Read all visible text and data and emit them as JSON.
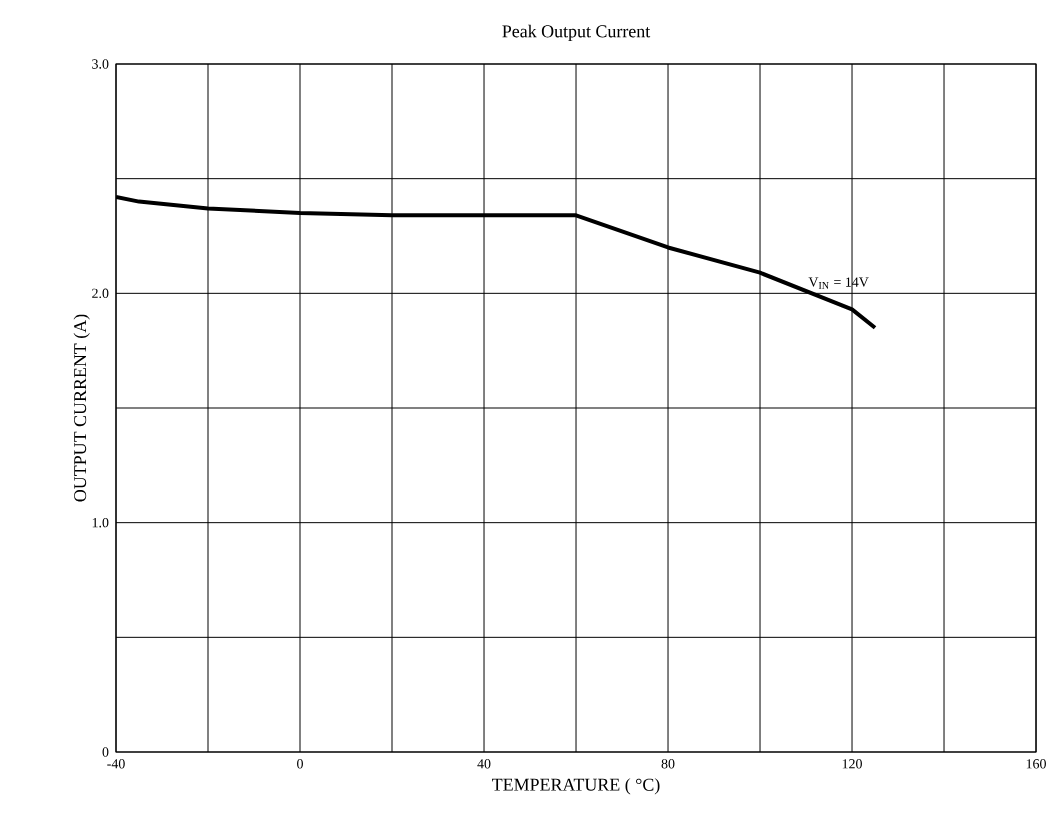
{
  "chart_data": {
    "type": "line",
    "title": "Peak Output Current",
    "xlabel": "TEMPERATURE ( °C)",
    "ylabel": "OUTPUT CURRENT (A)",
    "xlim": [
      -40,
      160
    ],
    "ylim": [
      0,
      3.0
    ],
    "xticks": [
      -40,
      {
        "value": -20,
        "label": null
      },
      0,
      {
        "value": 20,
        "label": null
      },
      40,
      {
        "value": 60,
        "label": null
      },
      80,
      {
        "value": 100,
        "label": null
      },
      120,
      {
        "value": 140,
        "label": null
      },
      160
    ],
    "yticks": [
      0,
      {
        "value": 0.5,
        "label": null
      },
      {
        "value": 1.0,
        "label": "1.0"
      },
      {
        "value": 1.5,
        "label": null
      },
      {
        "value": 2.0,
        "label": "2.0"
      },
      {
        "value": 2.5,
        "label": null
      },
      {
        "value": 3.0,
        "label": "3.0"
      }
    ],
    "grid": true,
    "marker": "none",
    "line_style": "solid",
    "series": [
      {
        "name": "V$_{IN}$ = 14V",
        "color": "#000000",
        "x": [
          -40,
          -35,
          -20,
          0,
          20,
          40,
          60,
          80,
          100,
          110,
          120,
          125
        ],
        "values": [
          2.42,
          2.4,
          2.37,
          2.35,
          2.34,
          2.34,
          2.34,
          2.2,
          2.09,
          2.01,
          1.93,
          1.85
        ]
      }
    ]
  }
}
